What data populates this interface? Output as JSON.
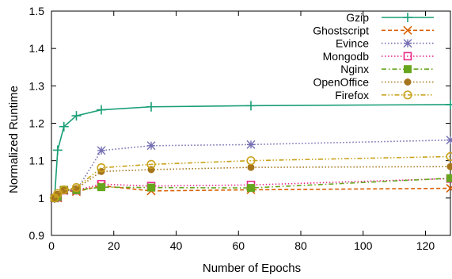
{
  "chart_data": {
    "type": "line",
    "title": "",
    "xlabel": "Number of Epochs",
    "ylabel": "Normalized Runtime",
    "xlim": [
      0,
      128
    ],
    "ylim": [
      0.9,
      1.5
    ],
    "xticks": [
      0,
      20,
      40,
      60,
      80,
      100,
      120
    ],
    "yticks": [
      0.9,
      1,
      1.1,
      1.2,
      1.3,
      1.4,
      1.5
    ],
    "xtick_labels": [
      "0",
      "20",
      "40",
      "60",
      "80",
      "100",
      "120"
    ],
    "ytick_labels": [
      "0.9",
      "1",
      "1.1",
      "1.2",
      "1.3",
      "1.4",
      "1.5"
    ],
    "grid": false,
    "legend_position": "top-right",
    "x": [
      1,
      2,
      4,
      8,
      16,
      32,
      64,
      128
    ],
    "series": [
      {
        "name": "Gzip",
        "values": [
          1.0,
          1.128,
          1.191,
          1.22,
          1.236,
          1.244,
          1.247,
          1.25
        ],
        "color": "#1a9e77",
        "marker": "plus",
        "dash": "solid"
      },
      {
        "name": "Ghostscript",
        "values": [
          1.0,
          1.0,
          1.02,
          1.017,
          1.033,
          1.019,
          1.022,
          1.026
        ],
        "color": "#d95f02",
        "marker": "cross",
        "dash": "dashed"
      },
      {
        "name": "Evince",
        "values": [
          1.0,
          1.005,
          1.02,
          1.02,
          1.127,
          1.14,
          1.143,
          1.155
        ],
        "color": "#7570b3",
        "marker": "star",
        "dash": "dotted"
      },
      {
        "name": "Mongodb",
        "values": [
          1.0,
          1.002,
          1.021,
          1.021,
          1.037,
          1.032,
          1.035,
          1.052
        ],
        "color": "#e7298a",
        "marker": "square-open",
        "dash": "dotted"
      },
      {
        "name": "Nginx",
        "values": [
          1.0,
          1.003,
          1.022,
          1.021,
          1.029,
          1.028,
          1.027,
          1.053
        ],
        "color": "#66a61e",
        "marker": "square-filled",
        "dash": "dashdot"
      },
      {
        "name": "OpenOffice",
        "values": [
          1.0,
          1.01,
          1.02,
          1.025,
          1.071,
          1.076,
          1.082,
          1.084
        ],
        "color": "#a6761d",
        "marker": "circle-filled",
        "dash": "dotted"
      },
      {
        "name": "Firefox",
        "values": [
          1.0,
          1.012,
          1.022,
          1.028,
          1.081,
          1.09,
          1.1,
          1.111
        ],
        "color": "#c9a21c",
        "marker": "circle-open",
        "dash": "dashdotdot"
      }
    ]
  }
}
